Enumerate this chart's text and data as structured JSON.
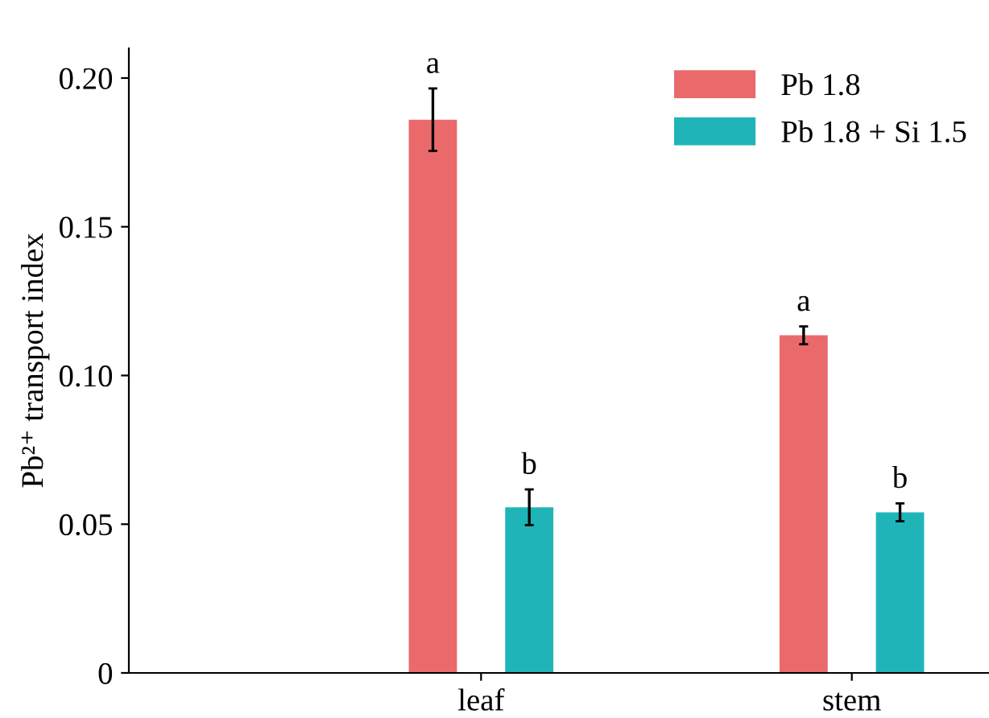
{
  "chart_data": {
    "type": "bar",
    "ylabel": "Pb²⁺ transport index",
    "categories": [
      "leaf",
      "stem"
    ],
    "series": [
      {
        "name": "Pb 1.8",
        "color": "#ea6a6b",
        "values": [
          0.186,
          0.1135
        ],
        "errors": [
          0.0105,
          0.003
        ]
      },
      {
        "name": "Pb 1.8 + Si 1.5",
        "color": "#1fb5b8",
        "values": [
          0.0557,
          0.054
        ],
        "errors": [
          0.006,
          0.003
        ]
      }
    ],
    "ylim": [
      0,
      0.21
    ],
    "yticks": [
      0,
      {
        "value": 0.05,
        "label": "0.05"
      },
      {
        "value": 0.1,
        "label": "0.10"
      },
      {
        "value": 0.15,
        "label": "0.15"
      },
      {
        "value": 0.2,
        "label": "0.20"
      }
    ],
    "annotations": [
      "a",
      "b",
      "a",
      "b"
    ],
    "legend": "top right",
    "grid": false
  }
}
